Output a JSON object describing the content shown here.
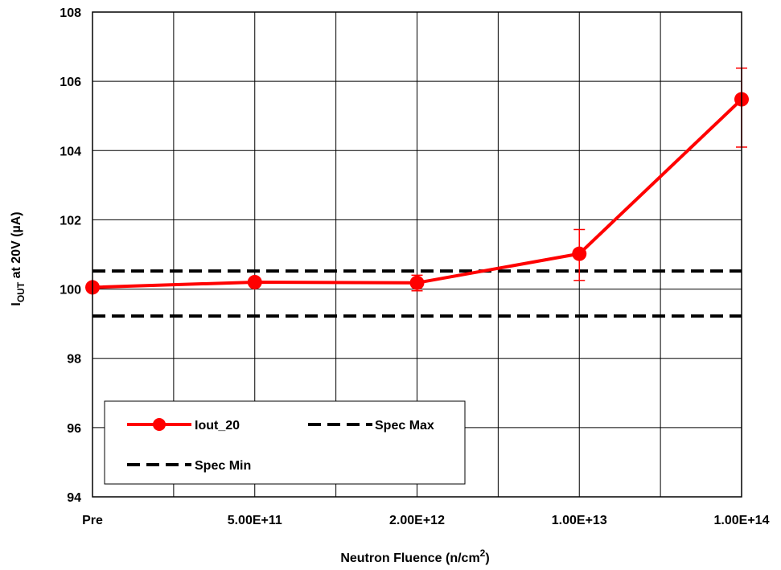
{
  "chart_data": {
    "type": "line",
    "title": "",
    "xlabel_main": "Neutron Fluence (n/cm",
    "xlabel_sup": "2",
    "xlabel_end": ")",
    "ylabel_main": "I",
    "ylabel_sub": "OUT",
    "ylabel_end": " at 20V (µA)",
    "categories": [
      "Pre",
      "5.00E+11",
      "2.00E+12",
      "1.00E+13",
      "1.00E+14"
    ],
    "ylim": [
      94,
      108
    ],
    "yticks": [
      "94",
      "96",
      "98",
      "100",
      "102",
      "104",
      "106",
      "108"
    ],
    "yticks_values": [
      94,
      96,
      98,
      100,
      102,
      104,
      106,
      108
    ],
    "grid": true,
    "legend_position": "bottom-left",
    "series": [
      {
        "name": "Iout_20",
        "color": "#ff0000",
        "style": "solid-marker",
        "values": [
          100.05,
          100.2,
          100.18,
          101.02,
          105.48
        ],
        "error_low": [
          null,
          null,
          99.95,
          100.25,
          104.1
        ],
        "error_high": [
          null,
          null,
          100.4,
          101.72,
          106.38
        ]
      },
      {
        "name": "Spec Max",
        "color": "#000000",
        "style": "dashed",
        "value": 100.52
      },
      {
        "name": "Spec Min",
        "color": "#000000",
        "style": "dashed",
        "value": 99.22
      }
    ]
  }
}
